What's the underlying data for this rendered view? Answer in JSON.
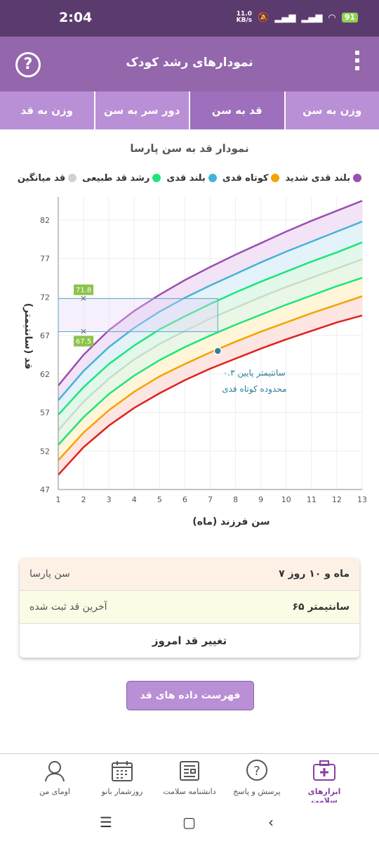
{
  "status": {
    "time": "2:04",
    "net_speed": "11.0",
    "net_unit": "KB/s",
    "battery": "91"
  },
  "appbar": {
    "title": "نمودارهای رشد کودک",
    "help_icon": "question-icon",
    "menu_icon": "more-vertical-icon"
  },
  "tabs": [
    {
      "label": "وزن به سن",
      "active": false
    },
    {
      "label": "قد به سن",
      "active": true
    },
    {
      "label": "دور سر به سن",
      "active": false
    },
    {
      "label": "وزن به قد",
      "active": false
    }
  ],
  "chart_title": "نمودار قد به سن پارسا",
  "legend": [
    {
      "label": "بلند قدی شدید",
      "color": "#9b4fb0"
    },
    {
      "label": "کوتاه قدی",
      "color": "#f4a300"
    },
    {
      "label": "بلند قدی",
      "color": "#45b3d6"
    },
    {
      "label": "رشد قد طبیعی",
      "color": "#1de57a"
    },
    {
      "label": "قد میانگین",
      "color": "#d0d0d0"
    }
  ],
  "chart_data": {
    "type": "line",
    "xlabel": "سن فرزند (ماه)",
    "ylabel": "قد (سانتیمتر)",
    "xlim": [
      1,
      13
    ],
    "ylim": [
      47,
      85
    ],
    "xticks": [
      "1",
      "2",
      "3",
      "4",
      "5",
      "6",
      "7",
      "8",
      "9",
      "10",
      "11",
      "12",
      "13"
    ],
    "yticks": [
      "47",
      "52",
      "57",
      "62",
      "67",
      "72",
      "77",
      "82"
    ],
    "x": [
      1,
      2,
      3,
      4,
      5,
      6,
      7,
      8,
      9,
      10,
      11,
      12,
      13
    ],
    "series": [
      {
        "key": "sd3",
        "color": "#9b4fb0",
        "values": [
          60.5,
          64.5,
          67.7,
          70.2,
          72.3,
          74.2,
          75.9,
          77.5,
          79.0,
          80.5,
          81.9,
          83.2,
          84.5
        ]
      },
      {
        "key": "sd2",
        "color": "#45b3d6",
        "values": [
          58.6,
          62.4,
          65.5,
          68.0,
          70.1,
          71.9,
          73.5,
          75.0,
          76.5,
          77.9,
          79.2,
          80.5,
          81.8
        ]
      },
      {
        "key": "sd1",
        "color": "#1de57a",
        "values": [
          56.7,
          60.3,
          63.3,
          65.7,
          67.8,
          69.5,
          71.1,
          72.6,
          74.0,
          75.3,
          76.6,
          77.8,
          79.1
        ]
      },
      {
        "key": "median",
        "color": "#c9dcc9",
        "values": [
          54.7,
          58.4,
          61.4,
          63.9,
          65.9,
          67.6,
          69.2,
          70.6,
          72.0,
          73.3,
          74.5,
          75.7,
          76.9
        ]
      },
      {
        "key": "sd_1",
        "color": "#1de57a",
        "values": [
          52.8,
          56.4,
          59.4,
          61.8,
          63.8,
          65.5,
          67.0,
          68.4,
          69.7,
          71.0,
          72.2,
          73.4,
          74.5
        ]
      },
      {
        "key": "sd_2",
        "color": "#f4a300",
        "values": [
          50.8,
          54.4,
          57.3,
          59.7,
          61.7,
          63.3,
          64.8,
          66.2,
          67.5,
          68.7,
          69.9,
          71.0,
          72.1
        ]
      },
      {
        "key": "sd_3",
        "color": "#e02020",
        "values": [
          48.9,
          52.5,
          55.3,
          57.6,
          59.5,
          61.2,
          62.7,
          64.0,
          65.3,
          66.5,
          67.6,
          68.7,
          69.6
        ]
      }
    ],
    "band_fills": [
      "#f1def5",
      "#dff0f8",
      "#dcf7e8",
      "#e6f6e2",
      "#fff4d4",
      "#fde0dc"
    ],
    "highlight": {
      "x_from": 1,
      "x_to": 7.3,
      "y_low": 67.5,
      "y_high": 71.8,
      "label_low": "67.5",
      "label_high": "71.8",
      "marker_x": 2
    },
    "child_point": {
      "x": 7.3,
      "y": 65,
      "note_line1": "۰.۳ سانتیمتر پایین",
      "note_line2": "محدوده کوتاه قدی"
    }
  },
  "info_card": {
    "age_label": "سن پارسا",
    "age_value": "۷ ماه و ۱۰ روز",
    "height_label": "آخرین قد ثبت شده",
    "height_value": "۶۵ سانتیمتر",
    "change_label": "تغییر قد امروز"
  },
  "list_button": "فهرست داده های قد پارسا",
  "bottom_nav": [
    {
      "label": "ابزارهای سلامت",
      "icon": "medical-kit-icon",
      "active": true
    },
    {
      "label": "پرسش و پاسخ",
      "icon": "question-bubble-icon",
      "active": false
    },
    {
      "label": "دانشنامه سلامت",
      "icon": "newspaper-icon",
      "active": false
    },
    {
      "label": "روزشمار بانو",
      "icon": "calendar-icon",
      "active": false
    },
    {
      "label": "اومای من",
      "icon": "profile-icon",
      "active": false
    }
  ]
}
